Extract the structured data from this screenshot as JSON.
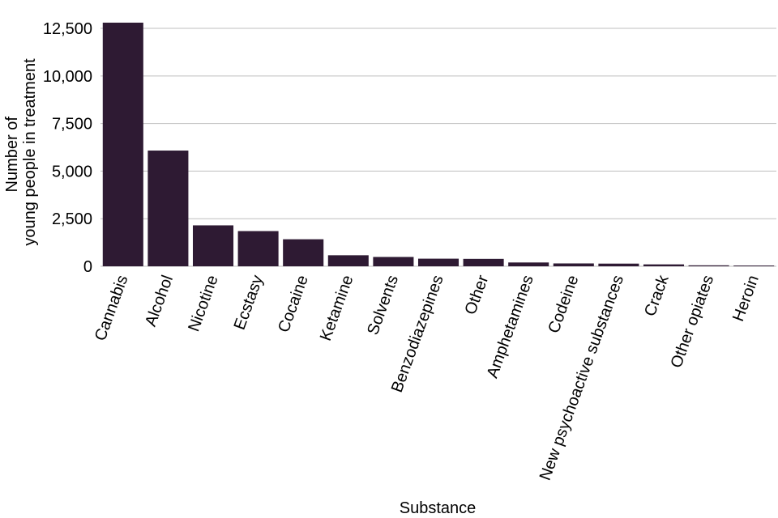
{
  "chart_data": {
    "type": "bar",
    "categories": [
      "Cannabis",
      "Alcohol",
      "Nicotine",
      "Ecstasy",
      "Cocaine",
      "Ketamine",
      "Solvents",
      "Benzodiazepines",
      "Other",
      "Amphetamines",
      "Codeine",
      "New psychoactive substances",
      "Crack",
      "Other opiates",
      "Heroin"
    ],
    "values": [
      12800,
      6080,
      2150,
      1850,
      1420,
      580,
      490,
      400,
      390,
      200,
      150,
      140,
      100,
      50,
      40
    ],
    "xlabel": "Substance",
    "ylabel_lines": [
      "Number of",
      "young people in treatment"
    ],
    "ylim": [
      0,
      12800
    ],
    "yticks": [
      0,
      2500,
      5000,
      7500,
      10000,
      12500
    ],
    "ytick_labels": [
      "0",
      "2,500",
      "5,000",
      "7,500",
      "10,000",
      "12,500"
    ],
    "bar_color": "#2e1a33",
    "grid": "horizontal",
    "legend": "none"
  }
}
